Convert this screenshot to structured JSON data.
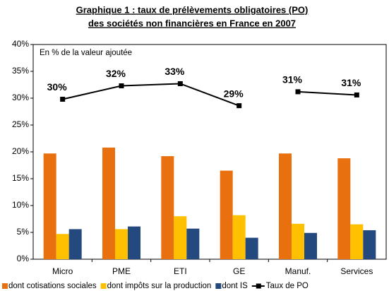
{
  "chart_data": {
    "type": "bar",
    "title": [
      "Graphique 1 : taux de prélèvements obligatoires (PO)",
      "des sociétés non financières en France en 2007"
    ],
    "annotation": "En % de la valeur ajoutée",
    "categories": [
      "Micro",
      "PME",
      "ETI",
      "GE",
      "Manuf.",
      "Services"
    ],
    "series": [
      {
        "name": "dont cotisations sociales",
        "color": "#E8700E",
        "values": [
          19.7,
          20.8,
          19.2,
          16.5,
          19.7,
          18.8
        ]
      },
      {
        "name": "dont impôts sur la production",
        "color": "#FFC000",
        "values": [
          4.7,
          5.6,
          8.0,
          8.2,
          6.6,
          6.5
        ]
      },
      {
        "name": "dont IS",
        "color": "#24497F",
        "values": [
          5.6,
          6.1,
          5.7,
          4.0,
          4.9,
          5.4
        ]
      },
      {
        "name": "Taux de PO",
        "type": "line",
        "color": "#000000",
        "values": [
          29.8,
          32.3,
          32.7,
          28.6,
          31.2,
          30.6
        ],
        "value_labels": [
          "30%",
          "32%",
          "33%",
          "29%",
          "31%",
          "31%"
        ],
        "line_breaks_after": [
          3
        ]
      }
    ],
    "ylim": [
      0,
      40
    ],
    "yticks": [
      {
        "value": 0,
        "label": "0%"
      },
      {
        "value": 5,
        "label": "5%"
      },
      {
        "value": 10,
        "label": "10%"
      },
      {
        "value": 15,
        "label": "15%"
      },
      {
        "value": 20,
        "label": "20%"
      },
      {
        "value": 25,
        "label": "25%"
      },
      {
        "value": 30,
        "label": "30%"
      },
      {
        "value": 35,
        "label": "35%"
      },
      {
        "value": 40,
        "label": "40%"
      }
    ],
    "grid": false,
    "legend": "bottom"
  }
}
